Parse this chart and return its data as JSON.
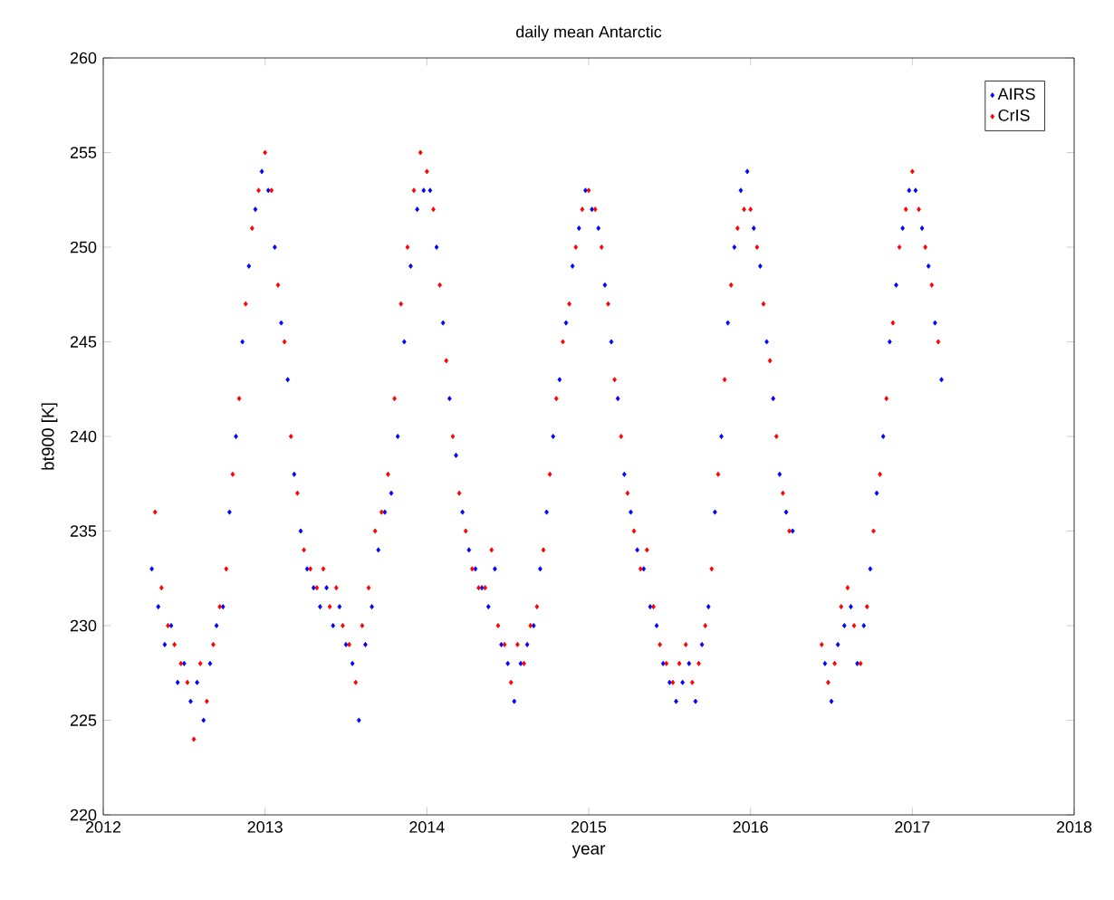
{
  "chart_data": {
    "type": "scatter",
    "title": "daily mean Antarctic",
    "xlabel": "year",
    "ylabel": "bt900 [K]",
    "xlim": [
      2012,
      2018
    ],
    "ylim": [
      220,
      260
    ],
    "xticks": [
      2012,
      2013,
      2014,
      2015,
      2016,
      2017,
      2018
    ],
    "yticks": [
      220,
      225,
      230,
      235,
      240,
      245,
      250,
      255,
      260
    ],
    "legend": "top right",
    "marker": "diamond",
    "series": [
      {
        "name": "AIRS",
        "color": "#0000ff",
        "x": [
          2012.3,
          2012.34,
          2012.38,
          2012.42,
          2012.46,
          2012.5,
          2012.54,
          2012.58,
          2012.62,
          2012.66,
          2012.7,
          2012.74,
          2012.78,
          2012.82,
          2012.86,
          2012.9,
          2012.94,
          2012.98,
          2013.02,
          2013.06,
          2013.1,
          2013.14,
          2013.18,
          2013.22,
          2013.26,
          2013.3,
          2013.34,
          2013.38,
          2013.42,
          2013.46,
          2013.5,
          2013.54,
          2013.58,
          2013.62,
          2013.66,
          2013.7,
          2013.74,
          2013.78,
          2013.82,
          2013.86,
          2013.9,
          2013.94,
          2013.98,
          2014.02,
          2014.06,
          2014.1,
          2014.14,
          2014.18,
          2014.22,
          2014.26,
          2014.3,
          2014.34,
          2014.38,
          2014.42,
          2014.46,
          2014.5,
          2014.54,
          2014.58,
          2014.62,
          2014.66,
          2014.7,
          2014.74,
          2014.78,
          2014.82,
          2014.86,
          2014.9,
          2014.94,
          2014.98,
          2015.02,
          2015.06,
          2015.1,
          2015.14,
          2015.18,
          2015.22,
          2015.26,
          2015.3,
          2015.34,
          2015.38,
          2015.42,
          2015.46,
          2015.5,
          2015.54,
          2015.58,
          2015.62,
          2015.66,
          2015.7,
          2015.74,
          2015.78,
          2015.82,
          2015.86,
          2015.9,
          2015.94,
          2015.98,
          2016.02,
          2016.06,
          2016.1,
          2016.14,
          2016.18,
          2016.22,
          2016.26,
          2016.46,
          2016.5,
          2016.54,
          2016.58,
          2016.62,
          2016.66,
          2016.7,
          2016.74,
          2016.78,
          2016.82,
          2016.86,
          2016.9,
          2016.94,
          2016.98,
          2017.02,
          2017.06,
          2017.1,
          2017.14,
          2017.18
        ],
        "values": [
          233,
          231,
          229,
          230,
          227,
          228,
          226,
          227,
          225,
          228,
          230,
          231,
          236,
          240,
          245,
          249,
          252,
          254,
          253,
          250,
          246,
          243,
          238,
          235,
          233,
          232,
          231,
          232,
          230,
          231,
          229,
          228,
          225,
          229,
          231,
          234,
          236,
          237,
          240,
          245,
          249,
          252,
          253,
          253,
          250,
          246,
          242,
          239,
          236,
          234,
          233,
          232,
          231,
          233,
          229,
          228,
          226,
          228,
          229,
          230,
          233,
          236,
          240,
          243,
          246,
          249,
          251,
          253,
          252,
          251,
          248,
          245,
          242,
          238,
          236,
          234,
          233,
          231,
          230,
          228,
          227,
          226,
          227,
          228,
          226,
          229,
          231,
          236,
          240,
          246,
          250,
          253,
          254,
          251,
          249,
          245,
          242,
          238,
          236,
          235,
          228,
          226,
          229,
          230,
          231,
          228,
          230,
          233,
          237,
          240,
          245,
          248,
          251,
          253,
          253,
          251,
          249,
          246,
          243
        ]
      },
      {
        "name": "CrIS",
        "color": "#ff0000",
        "x": [
          2012.32,
          2012.36,
          2012.4,
          2012.44,
          2012.48,
          2012.52,
          2012.56,
          2012.6,
          2012.64,
          2012.68,
          2012.72,
          2012.76,
          2012.8,
          2012.84,
          2012.88,
          2012.92,
          2012.96,
          2013.0,
          2013.04,
          2013.08,
          2013.12,
          2013.16,
          2013.2,
          2013.24,
          2013.28,
          2013.32,
          2013.36,
          2013.4,
          2013.44,
          2013.48,
          2013.52,
          2013.56,
          2013.6,
          2013.64,
          2013.68,
          2013.72,
          2013.76,
          2013.8,
          2013.84,
          2013.88,
          2013.92,
          2013.96,
          2014.0,
          2014.04,
          2014.08,
          2014.12,
          2014.16,
          2014.2,
          2014.24,
          2014.28,
          2014.32,
          2014.36,
          2014.4,
          2014.44,
          2014.48,
          2014.52,
          2014.56,
          2014.6,
          2014.64,
          2014.68,
          2014.72,
          2014.76,
          2014.8,
          2014.84,
          2014.88,
          2014.92,
          2014.96,
          2015.0,
          2015.04,
          2015.08,
          2015.12,
          2015.16,
          2015.2,
          2015.24,
          2015.28,
          2015.32,
          2015.36,
          2015.4,
          2015.44,
          2015.48,
          2015.52,
          2015.56,
          2015.6,
          2015.64,
          2015.68,
          2015.72,
          2015.76,
          2015.8,
          2015.84,
          2015.88,
          2015.92,
          2015.96,
          2016.0,
          2016.04,
          2016.08,
          2016.12,
          2016.16,
          2016.2,
          2016.24,
          2016.44,
          2016.48,
          2016.52,
          2016.56,
          2016.6,
          2016.64,
          2016.68,
          2016.72,
          2016.76,
          2016.8,
          2016.84,
          2016.88,
          2016.92,
          2016.96,
          2017.0,
          2017.04,
          2017.08,
          2017.12,
          2017.16
        ],
        "values": [
          236,
          232,
          230,
          229,
          228,
          227,
          224,
          228,
          226,
          229,
          231,
          233,
          238,
          242,
          247,
          251,
          253,
          255,
          253,
          248,
          245,
          240,
          237,
          234,
          233,
          232,
          233,
          231,
          232,
          230,
          229,
          227,
          230,
          232,
          235,
          236,
          238,
          242,
          247,
          250,
          253,
          255,
          254,
          252,
          248,
          244,
          240,
          237,
          235,
          233,
          232,
          232,
          234,
          230,
          229,
          227,
          229,
          228,
          230,
          231,
          234,
          238,
          242,
          245,
          247,
          250,
          252,
          253,
          252,
          250,
          247,
          243,
          240,
          237,
          235,
          233,
          234,
          231,
          229,
          228,
          227,
          228,
          229,
          227,
          228,
          230,
          233,
          238,
          243,
          248,
          251,
          252,
          252,
          250,
          247,
          244,
          240,
          237,
          235,
          229,
          227,
          228,
          231,
          232,
          230,
          228,
          231,
          235,
          238,
          242,
          246,
          250,
          252,
          254,
          252,
          250,
          248,
          245
        ]
      }
    ]
  }
}
